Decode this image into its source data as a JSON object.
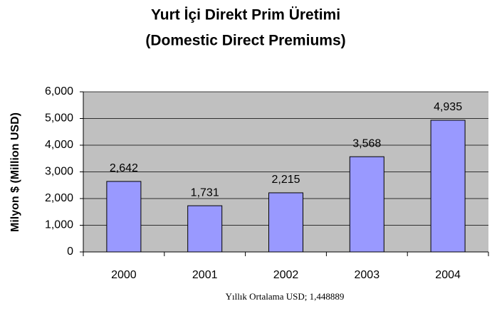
{
  "chart_data": {
    "type": "bar",
    "title": "Yurt İçi Direkt Prim Üretimi",
    "subtitle": "(Domestic Direct Premiums)",
    "y_label": "Milyon $ (Million USD)",
    "x_label": "Yıllık Ortalama USD; 1,448889",
    "categories": [
      "2000",
      "2001",
      "2002",
      "2003",
      "2004"
    ],
    "values": [
      2642,
      1731,
      2215,
      3568,
      4935
    ],
    "value_labels": [
      "2,642",
      "1,731",
      "2,215",
      "3,568",
      "4,935"
    ],
    "color": "#9999ff",
    "ylim": [
      0,
      6000
    ],
    "yticks": [
      0,
      {
        "value": 1000,
        "label": "1,000"
      },
      {
        "value": 2000,
        "label": "2,000"
      },
      {
        "value": 3000,
        "label": "3,000"
      },
      {
        "value": 4000,
        "label": "4,000"
      },
      {
        "value": 5000,
        "label": "5,000"
      },
      {
        "value": 6000,
        "label": "6,000"
      }
    ],
    "grid": true
  }
}
